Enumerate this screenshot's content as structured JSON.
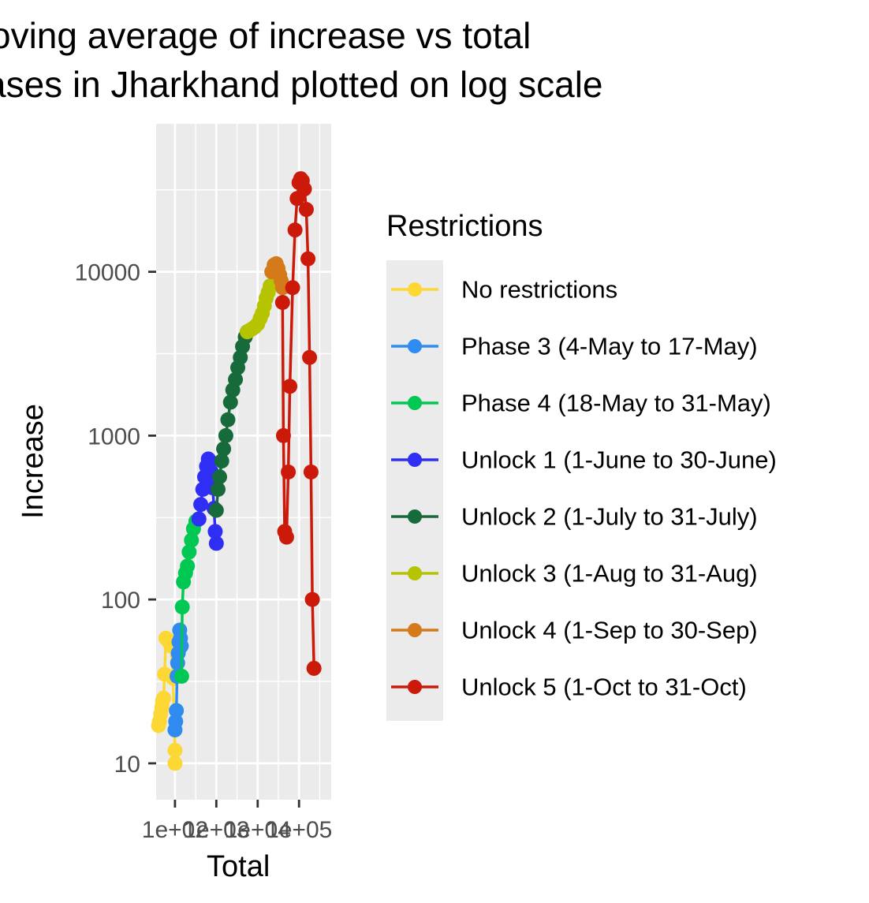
{
  "chart_data": {
    "type": "line",
    "title": "Moving average of increase vs total cases in Jharkhand plotted on log scale",
    "title_lines": [
      "oving average of increase vs total",
      "ases in Jharkhand plotted on log scale"
    ],
    "xlabel": "Total",
    "ylabel": "Increase",
    "x_scale": "log10",
    "y_scale": "log10",
    "xlim": [
      35,
      600000
    ],
    "ylim": [
      6,
      80000
    ],
    "x_ticks": [
      100,
      1000,
      10000,
      100000
    ],
    "x_tick_labels": [
      "1e+02",
      "1e+03",
      "1e+04",
      "1e+05"
    ],
    "y_ticks": [
      10,
      100,
      1000,
      10000
    ],
    "y_tick_labels": [
      "10",
      "100",
      "1000",
      "10000"
    ],
    "grid": true,
    "legend": {
      "title": "Restrictions",
      "position": "right",
      "entries": [
        "No restrictions",
        "Phase 3 (4-May to 17-May)",
        "Phase 4 (18-May to 31-May)",
        "Unlock 1 (1-June to 30-June)",
        "Unlock 2 (1-July to 31-July)",
        "Unlock 3 (1-Aug to 31-Aug)",
        "Unlock 4 (1-Sep to 30-Sep)",
        "Unlock 5 (1-Oct to 31-Oct)"
      ]
    },
    "series": [
      {
        "name": "No restrictions",
        "color": "#FDD835",
        "x": [
          40,
          42,
          45,
          48,
          50,
          53,
          56,
          60,
          65,
          72,
          80,
          90,
          100,
          100
        ],
        "y": [
          17,
          18,
          20,
          22,
          24,
          25,
          35,
          58,
          57,
          55,
          52,
          33,
          12,
          10
        ]
      },
      {
        "name": "Phase 3 (4-May to 17-May)",
        "color": "#2F8BF0",
        "x": [
          100,
          104,
          108,
          112,
          116,
          120,
          125,
          130,
          136,
          142
        ],
        "y": [
          16,
          18,
          21,
          34,
          41,
          47,
          55,
          65,
          58,
          52
        ]
      },
      {
        "name": "Phase 4 (18-May to 31-May)",
        "color": "#00C853",
        "x": [
          145,
          150,
          160,
          180,
          200,
          220,
          250,
          280,
          320,
          370
        ],
        "y": [
          34,
          90,
          128,
          145,
          160,
          195,
          230,
          270,
          300,
          310
        ]
      },
      {
        "name": "Unlock 1 (1-June to 30-June)",
        "color": "#2E2EF5",
        "x": [
          380,
          420,
          470,
          520,
          580,
          640,
          700,
          760,
          820,
          880,
          940,
          1000
        ],
        "y": [
          310,
          380,
          470,
          560,
          650,
          720,
          700,
          600,
          480,
          360,
          260,
          220
        ]
      },
      {
        "name": "Unlock 2 (1-July to 31-July)",
        "color": "#176B3A",
        "x": [
          1000,
          1100,
          1200,
          1350,
          1500,
          1700,
          1900,
          2200,
          2500,
          2900,
          3300,
          3800,
          4300,
          5000,
          5600
        ],
        "y": [
          350,
          470,
          560,
          700,
          830,
          1000,
          1250,
          1600,
          1900,
          2200,
          2600,
          3000,
          3500,
          4000,
          4300
        ]
      },
      {
        "name": "Unlock 3 (1-Aug to 31-Aug)",
        "color": "#B5C300",
        "x": [
          5600,
          6500,
          7500,
          8500,
          10000,
          11500,
          13000,
          14500,
          16000,
          18000,
          20000,
          22000
        ],
        "y": [
          4300,
          4400,
          4500,
          4600,
          4800,
          5200,
          5600,
          6200,
          6900,
          7500,
          8200,
          10000
        ]
      },
      {
        "name": "Unlock 4 (1-Sep to 30-Sep)",
        "color": "#D47A1A",
        "x": [
          22000,
          25000,
          28000,
          31000,
          34000,
          37000,
          40000
        ],
        "y": [
          10000,
          11000,
          11200,
          10500,
          9600,
          8800,
          8000
        ]
      },
      {
        "name": "Unlock 5 (1-Oct to 31-Oct)",
        "color": "#CC1A0A",
        "x": [
          40000,
          42000,
          45000,
          50000,
          55000,
          60000,
          70000,
          80000,
          90000,
          100000,
          110000,
          120000,
          135000,
          150000,
          165000,
          180000,
          195000,
          210000,
          230000
        ],
        "y": [
          6500,
          1000,
          260,
          240,
          600,
          2000,
          8000,
          18000,
          28000,
          35000,
          37000,
          36000,
          32000,
          24000,
          12000,
          3000,
          600,
          100,
          38
        ]
      }
    ]
  }
}
